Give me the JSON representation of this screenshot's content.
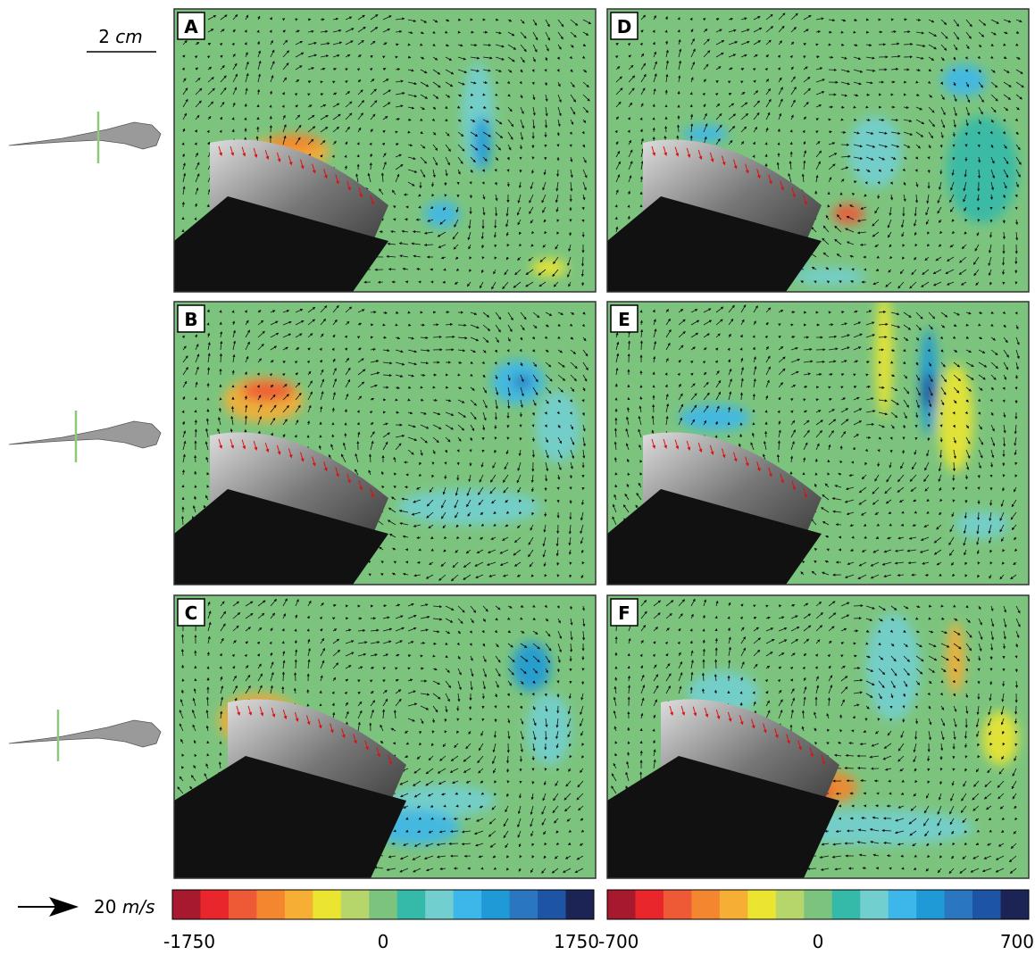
{
  "scale_bar": {
    "value": "2",
    "unit": "cm"
  },
  "velocity_key": {
    "value": "20",
    "unit": "m/s"
  },
  "panels": [
    {
      "label": "A"
    },
    {
      "label": "D"
    },
    {
      "label": "B"
    },
    {
      "label": "E"
    },
    {
      "label": "C"
    },
    {
      "label": "F"
    }
  ],
  "colorbars": [
    {
      "ticks": [
        -1750,
        0,
        1750
      ]
    },
    {
      "ticks": [
        -700,
        0,
        700
      ]
    }
  ],
  "colorbar_colors": [
    "#a6192e",
    "#e8262b",
    "#ee5a36",
    "#f3862f",
    "#f7ae35",
    "#ebe531",
    "#b6d56a",
    "#7cc47e",
    "#35b9a8",
    "#72cfd0",
    "#3db7ea",
    "#1f9ad7",
    "#2a77bf",
    "#1e54a4",
    "#1b2455"
  ]
}
